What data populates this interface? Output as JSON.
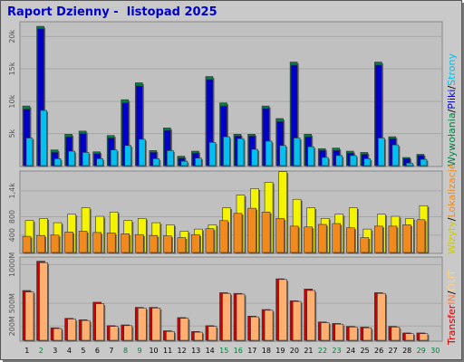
{
  "title": "Raport Dzienny -  listopad 2025",
  "colors": {
    "visits": "#f4f400",
    "pages": "#f08a1c",
    "files": "#00c0f0",
    "hits": "#0000c8",
    "kbytes_in": "#ff8040",
    "kbytes_out": "#e05050",
    "weekday": "#000000",
    "weekend": "#008040"
  },
  "legend_top": [
    {
      "text": "Wywołania",
      "color": "#008040"
    },
    {
      "text": "/",
      "color": "#000000"
    },
    {
      "text": "Pliki",
      "color": "#0000c8"
    },
    {
      "text": "/",
      "color": "#000000"
    },
    {
      "text": "Strony",
      "color": "#00c0f0"
    }
  ],
  "legend_mid": [
    {
      "text": "Wizyty",
      "color": "#cccc00"
    },
    {
      "text": "/",
      "color": "#000000"
    },
    {
      "text": "Lokalizacje",
      "color": "#f08a1c"
    }
  ],
  "legend_bot": [
    {
      "text": "Transfer",
      "color": "#cc0000"
    },
    {
      "text": "IN",
      "color": "#ff8040"
    },
    {
      "text": "/",
      "color": "#000000"
    },
    {
      "text": "OUT",
      "color": "#ffd080"
    }
  ],
  "chart_data": [
    {
      "type": "bar",
      "panel": "top",
      "categories": [
        "1",
        "2",
        "3",
        "4",
        "5",
        "6",
        "7",
        "8",
        "9",
        "10",
        "11",
        "12",
        "13",
        "14",
        "15",
        "16",
        "17",
        "18",
        "19",
        "20",
        "21",
        "22",
        "23",
        "24",
        "25",
        "26",
        "27",
        "28",
        "29",
        "30"
      ],
      "yticks": [
        "5k",
        "10k",
        "15k",
        "20k"
      ],
      "ylim": [
        0,
        22500
      ],
      "series": [
        {
          "name": "Wywołania",
          "values": [
            9500,
            22200,
            2500,
            5000,
            5500,
            2200,
            4800,
            10500,
            13200,
            2400,
            6000,
            1500,
            2300,
            14200,
            10000,
            5000,
            5000,
            9500,
            7500,
            16500,
            5000,
            2700,
            2800,
            2300,
            2100,
            16500,
            4600,
            1300,
            1800,
            0
          ]
        },
        {
          "name": "Pliki",
          "values": [
            9000,
            21800,
            2100,
            4600,
            5100,
            1900,
            4400,
            10000,
            12700,
            2100,
            5600,
            1200,
            2000,
            13700,
            9500,
            4700,
            4700,
            9100,
            7000,
            16000,
            4600,
            2400,
            2400,
            2000,
            1800,
            16000,
            4300,
            1100,
            1600,
            0
          ]
        },
        {
          "name": "Strony",
          "values": [
            4400,
            8800,
            1100,
            2300,
            2100,
            1100,
            2500,
            3200,
            4200,
            1100,
            2400,
            700,
            1200,
            3700,
            4600,
            4300,
            2600,
            3900,
            3200,
            4400,
            3000,
            1300,
            1600,
            1600,
            1100,
            4400,
            3300,
            400,
            1000,
            0
          ]
        }
      ]
    },
    {
      "type": "bar",
      "panel": "middle",
      "categories": [
        "1",
        "2",
        "3",
        "4",
        "5",
        "6",
        "7",
        "8",
        "9",
        "10",
        "11",
        "12",
        "13",
        "14",
        "15",
        "16",
        "17",
        "18",
        "19",
        "20",
        "21",
        "22",
        "23",
        "24",
        "25",
        "26",
        "27",
        "28",
        "29",
        "30"
      ],
      "yticks": [
        "400",
        "800",
        "1,4k"
      ],
      "ylim": [
        0,
        1850
      ],
      "series": [
        {
          "name": "Wizyty",
          "values": [
            750,
            800,
            700,
            900,
            1050,
            850,
            950,
            750,
            800,
            700,
            650,
            500,
            550,
            650,
            1050,
            1350,
            1500,
            1650,
            1900,
            1250,
            1050,
            800,
            900,
            1050,
            550,
            900,
            850,
            800,
            1100,
            0
          ]
        },
        {
          "name": "Lokalizacje",
          "values": [
            380,
            400,
            410,
            480,
            500,
            470,
            460,
            440,
            420,
            400,
            390,
            350,
            420,
            560,
            750,
            920,
            1040,
            950,
            800,
            620,
            600,
            660,
            680,
            580,
            350,
            620,
            620,
            650,
            770,
            0
          ]
        }
      ]
    },
    {
      "type": "bar",
      "panel": "bottom",
      "categories": [
        "1",
        "2",
        "3",
        "4",
        "5",
        "6",
        "7",
        "8",
        "9",
        "10",
        "11",
        "12",
        "13",
        "14",
        "15",
        "16",
        "17",
        "18",
        "19",
        "20",
        "21",
        "22",
        "23",
        "24",
        "25",
        "26",
        "27",
        "28",
        "29",
        "30"
      ],
      "yticks": [
        "200M",
        "500M",
        "1000M"
      ],
      "ylim": [
        0,
        1100
      ],
      "series": [
        {
          "name": "Transfer",
          "values": [
            680,
            1080,
            170,
            300,
            280,
            520,
            200,
            210,
            450,
            450,
            130,
            310,
            120,
            200,
            650,
            640,
            330,
            420,
            840,
            540,
            700,
            250,
            230,
            190,
            180,
            650,
            190,
            100,
            100,
            0
          ]
        },
        {
          "name": "IN",
          "values": [
            660,
            1060,
            160,
            290,
            270,
            500,
            190,
            200,
            440,
            440,
            120,
            300,
            110,
            190,
            640,
            630,
            320,
            410,
            830,
            530,
            680,
            240,
            220,
            180,
            170,
            640,
            180,
            90,
            90,
            0
          ]
        }
      ]
    }
  ],
  "weekend_days": [
    2,
    8,
    9,
    15,
    16,
    22,
    23,
    29,
    30
  ]
}
